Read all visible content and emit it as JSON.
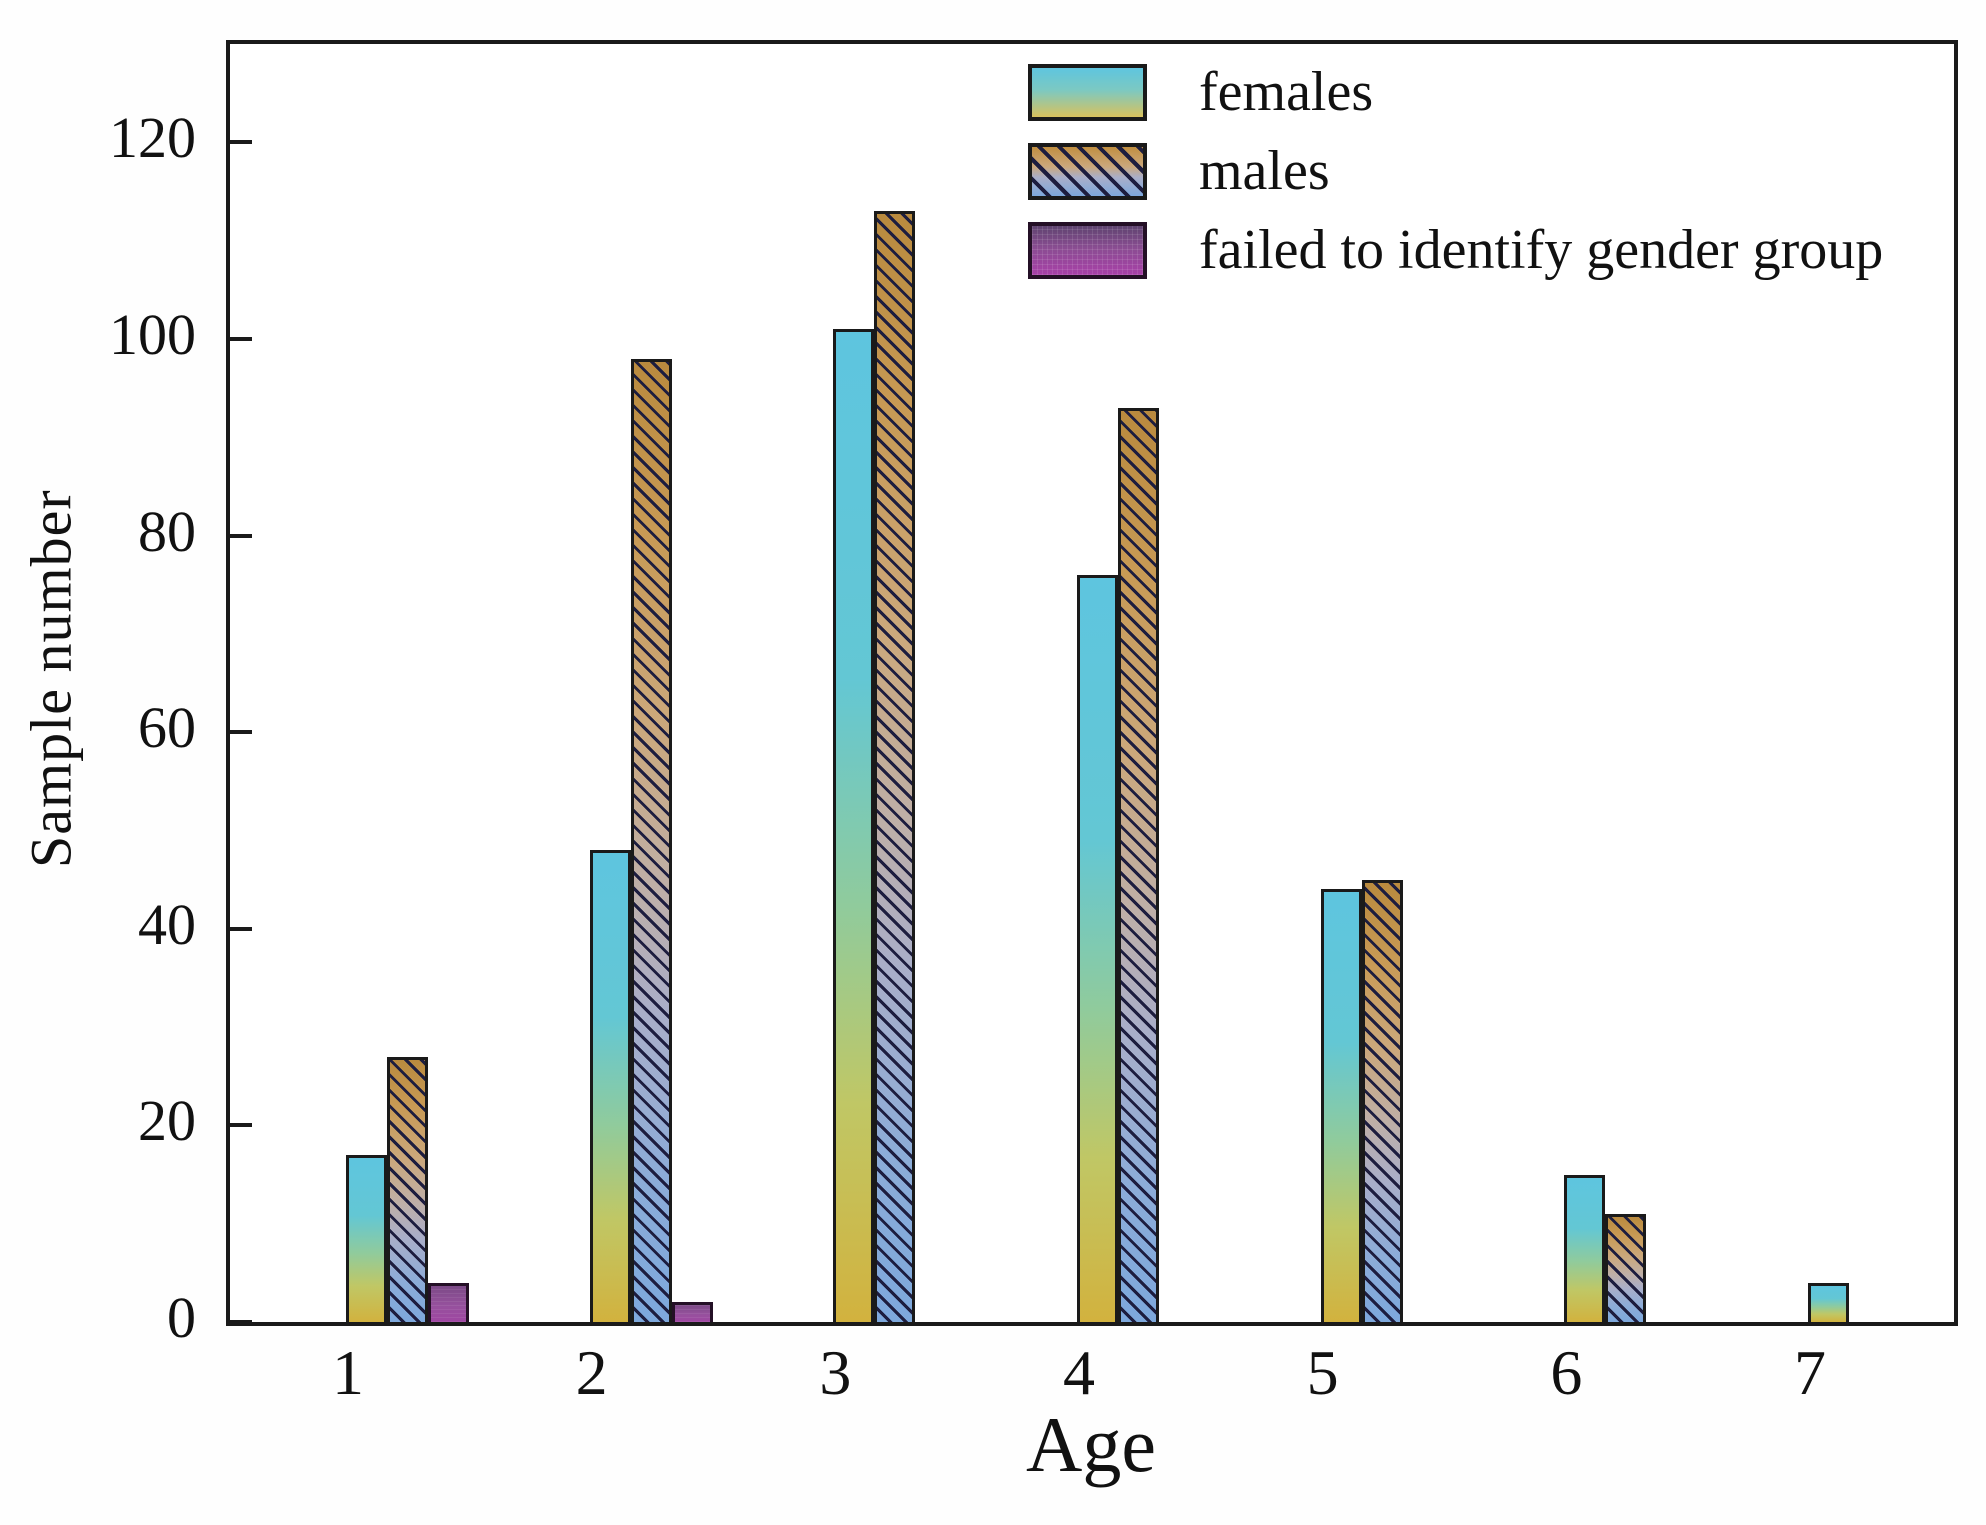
{
  "figure": {
    "background": "#ffffff",
    "axis_color": "#1a1a1a"
  },
  "chart_data": {
    "type": "bar",
    "title": "",
    "xlabel": "Age",
    "ylabel": "Sample number",
    "categories": [
      "1",
      "2",
      "3",
      "4",
      "5",
      "6",
      "7"
    ],
    "series": [
      {
        "name": "females",
        "values": [
          17,
          48,
          101,
          76,
          44,
          15,
          4
        ]
      },
      {
        "name": "males",
        "values": [
          27,
          98,
          113,
          93,
          45,
          11,
          0
        ]
      },
      {
        "name": "failed to identify gender group",
        "values": [
          4,
          2,
          0,
          0,
          0,
          0,
          0
        ]
      }
    ],
    "ylim": [
      0,
      130
    ],
    "yticks": [
      0,
      20,
      40,
      60,
      80,
      100,
      120
    ],
    "grid": false,
    "legend_position": "upper center",
    "colors": {
      "females_gradient_top": "#5ec5df",
      "females_gradient_bottom": "#d2b23e",
      "males_gradient_top": "#b98a3e",
      "males_gradient_bottom": "#7da8dc",
      "males_hatch": "#1d1d3f",
      "failed_fill": "#96519d",
      "bar_border": "#1a1a1a"
    }
  }
}
